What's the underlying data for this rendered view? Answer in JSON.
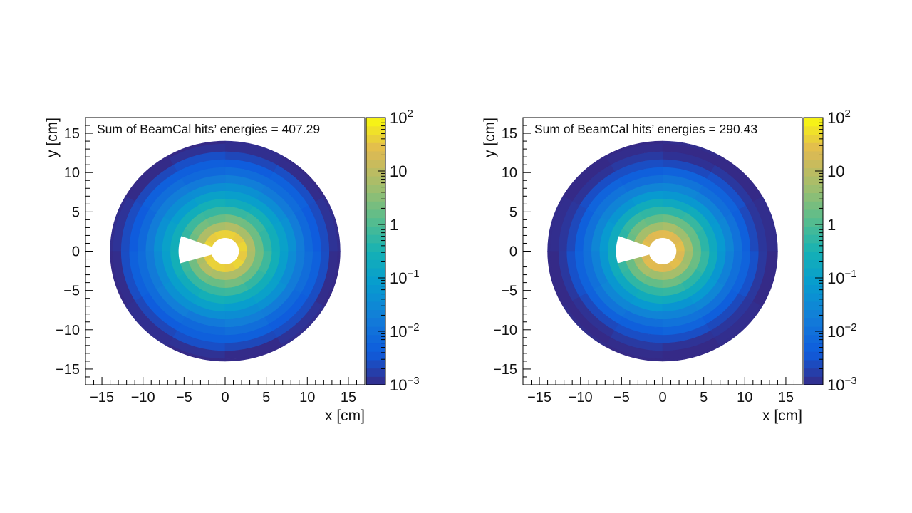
{
  "chart_data": [
    {
      "type": "heatmap",
      "subtype": "polar-binned 2D histogram",
      "annotation": "Sum of BeamCal hits’ energies = 407.29",
      "xlabel": "x [cm]",
      "ylabel": "y [cm]",
      "xlim": [
        -17,
        17
      ],
      "ylim": [
        -17,
        17
      ],
      "x_ticks": [
        "−15",
        "−10",
        "−5",
        "0",
        "5",
        "10",
        "15"
      ],
      "y_ticks": [
        "−15",
        "−10",
        "−5",
        "0",
        "5",
        "10",
        "15"
      ],
      "colorbar": {
        "scale": "log",
        "zlim": [
          0.001,
          100
        ],
        "labels": [
          "10⁻³",
          "10⁻²",
          "10⁻¹",
          "1",
          "10",
          "10²"
        ]
      },
      "detector": {
        "inner_radius_cm": 1.7,
        "outer_radius_cm": 14,
        "ring_width_cm": 1,
        "gap_wedge_deg": [
          160,
          196
        ],
        "min_filled_wedge_deg": [
          196,
          200
        ]
      },
      "radial_profile": [
        {
          "r": 2.2,
          "z": 40
        },
        {
          "r": 3.0,
          "z": 9
        },
        {
          "r": 4.0,
          "z": 2.5
        },
        {
          "r": 5.0,
          "z": 0.8
        },
        {
          "r": 6.0,
          "z": 0.3
        },
        {
          "r": 7.0,
          "z": 0.12
        },
        {
          "r": 8.0,
          "z": 0.05
        },
        {
          "r": 9.0,
          "z": 0.02
        },
        {
          "r": 10.0,
          "z": 0.009
        },
        {
          "r": 11.0,
          "z": 0.005
        },
        {
          "r": 12.0,
          "z": 0.003
        },
        {
          "r": 13.0,
          "z": 0.0012
        },
        {
          "r": 14.0,
          "z": 0.001
        }
      ]
    },
    {
      "type": "heatmap",
      "subtype": "polar-binned 2D histogram",
      "annotation": "Sum of BeamCal hits’ energies = 290.43",
      "xlabel": "x [cm]",
      "ylabel": "y [cm]",
      "xlim": [
        -17,
        17
      ],
      "ylim": [
        -17,
        17
      ],
      "x_ticks": [
        "−15",
        "−10",
        "−5",
        "0",
        "5",
        "10",
        "15"
      ],
      "y_ticks": [
        "−15",
        "−10",
        "−5",
        "0",
        "5",
        "10",
        "15"
      ],
      "colorbar": {
        "scale": "log",
        "zlim": [
          0.001,
          100
        ],
        "labels": [
          "10⁻³",
          "10⁻²",
          "10⁻¹",
          "1",
          "10",
          "10²"
        ]
      },
      "detector": {
        "inner_radius_cm": 1.7,
        "outer_radius_cm": 14,
        "ring_width_cm": 1,
        "gap_wedge_deg": [
          160,
          196
        ],
        "min_filled_wedge_deg": [
          196,
          200
        ]
      },
      "radial_profile": [
        {
          "r": 2.2,
          "z": 25
        },
        {
          "r": 3.0,
          "z": 7
        },
        {
          "r": 4.0,
          "z": 2.2
        },
        {
          "r": 5.0,
          "z": 0.7
        },
        {
          "r": 6.0,
          "z": 0.25
        },
        {
          "r": 7.0,
          "z": 0.08
        },
        {
          "r": 8.0,
          "z": 0.03
        },
        {
          "r": 9.0,
          "z": 0.012
        },
        {
          "r": 10.0,
          "z": 0.006
        },
        {
          "r": 11.0,
          "z": 0.003
        },
        {
          "r": 12.0,
          "z": 0.0015
        },
        {
          "r": 13.0,
          "z": 0.001
        },
        {
          "r": 14.0,
          "z": 0.001
        }
      ]
    }
  ]
}
